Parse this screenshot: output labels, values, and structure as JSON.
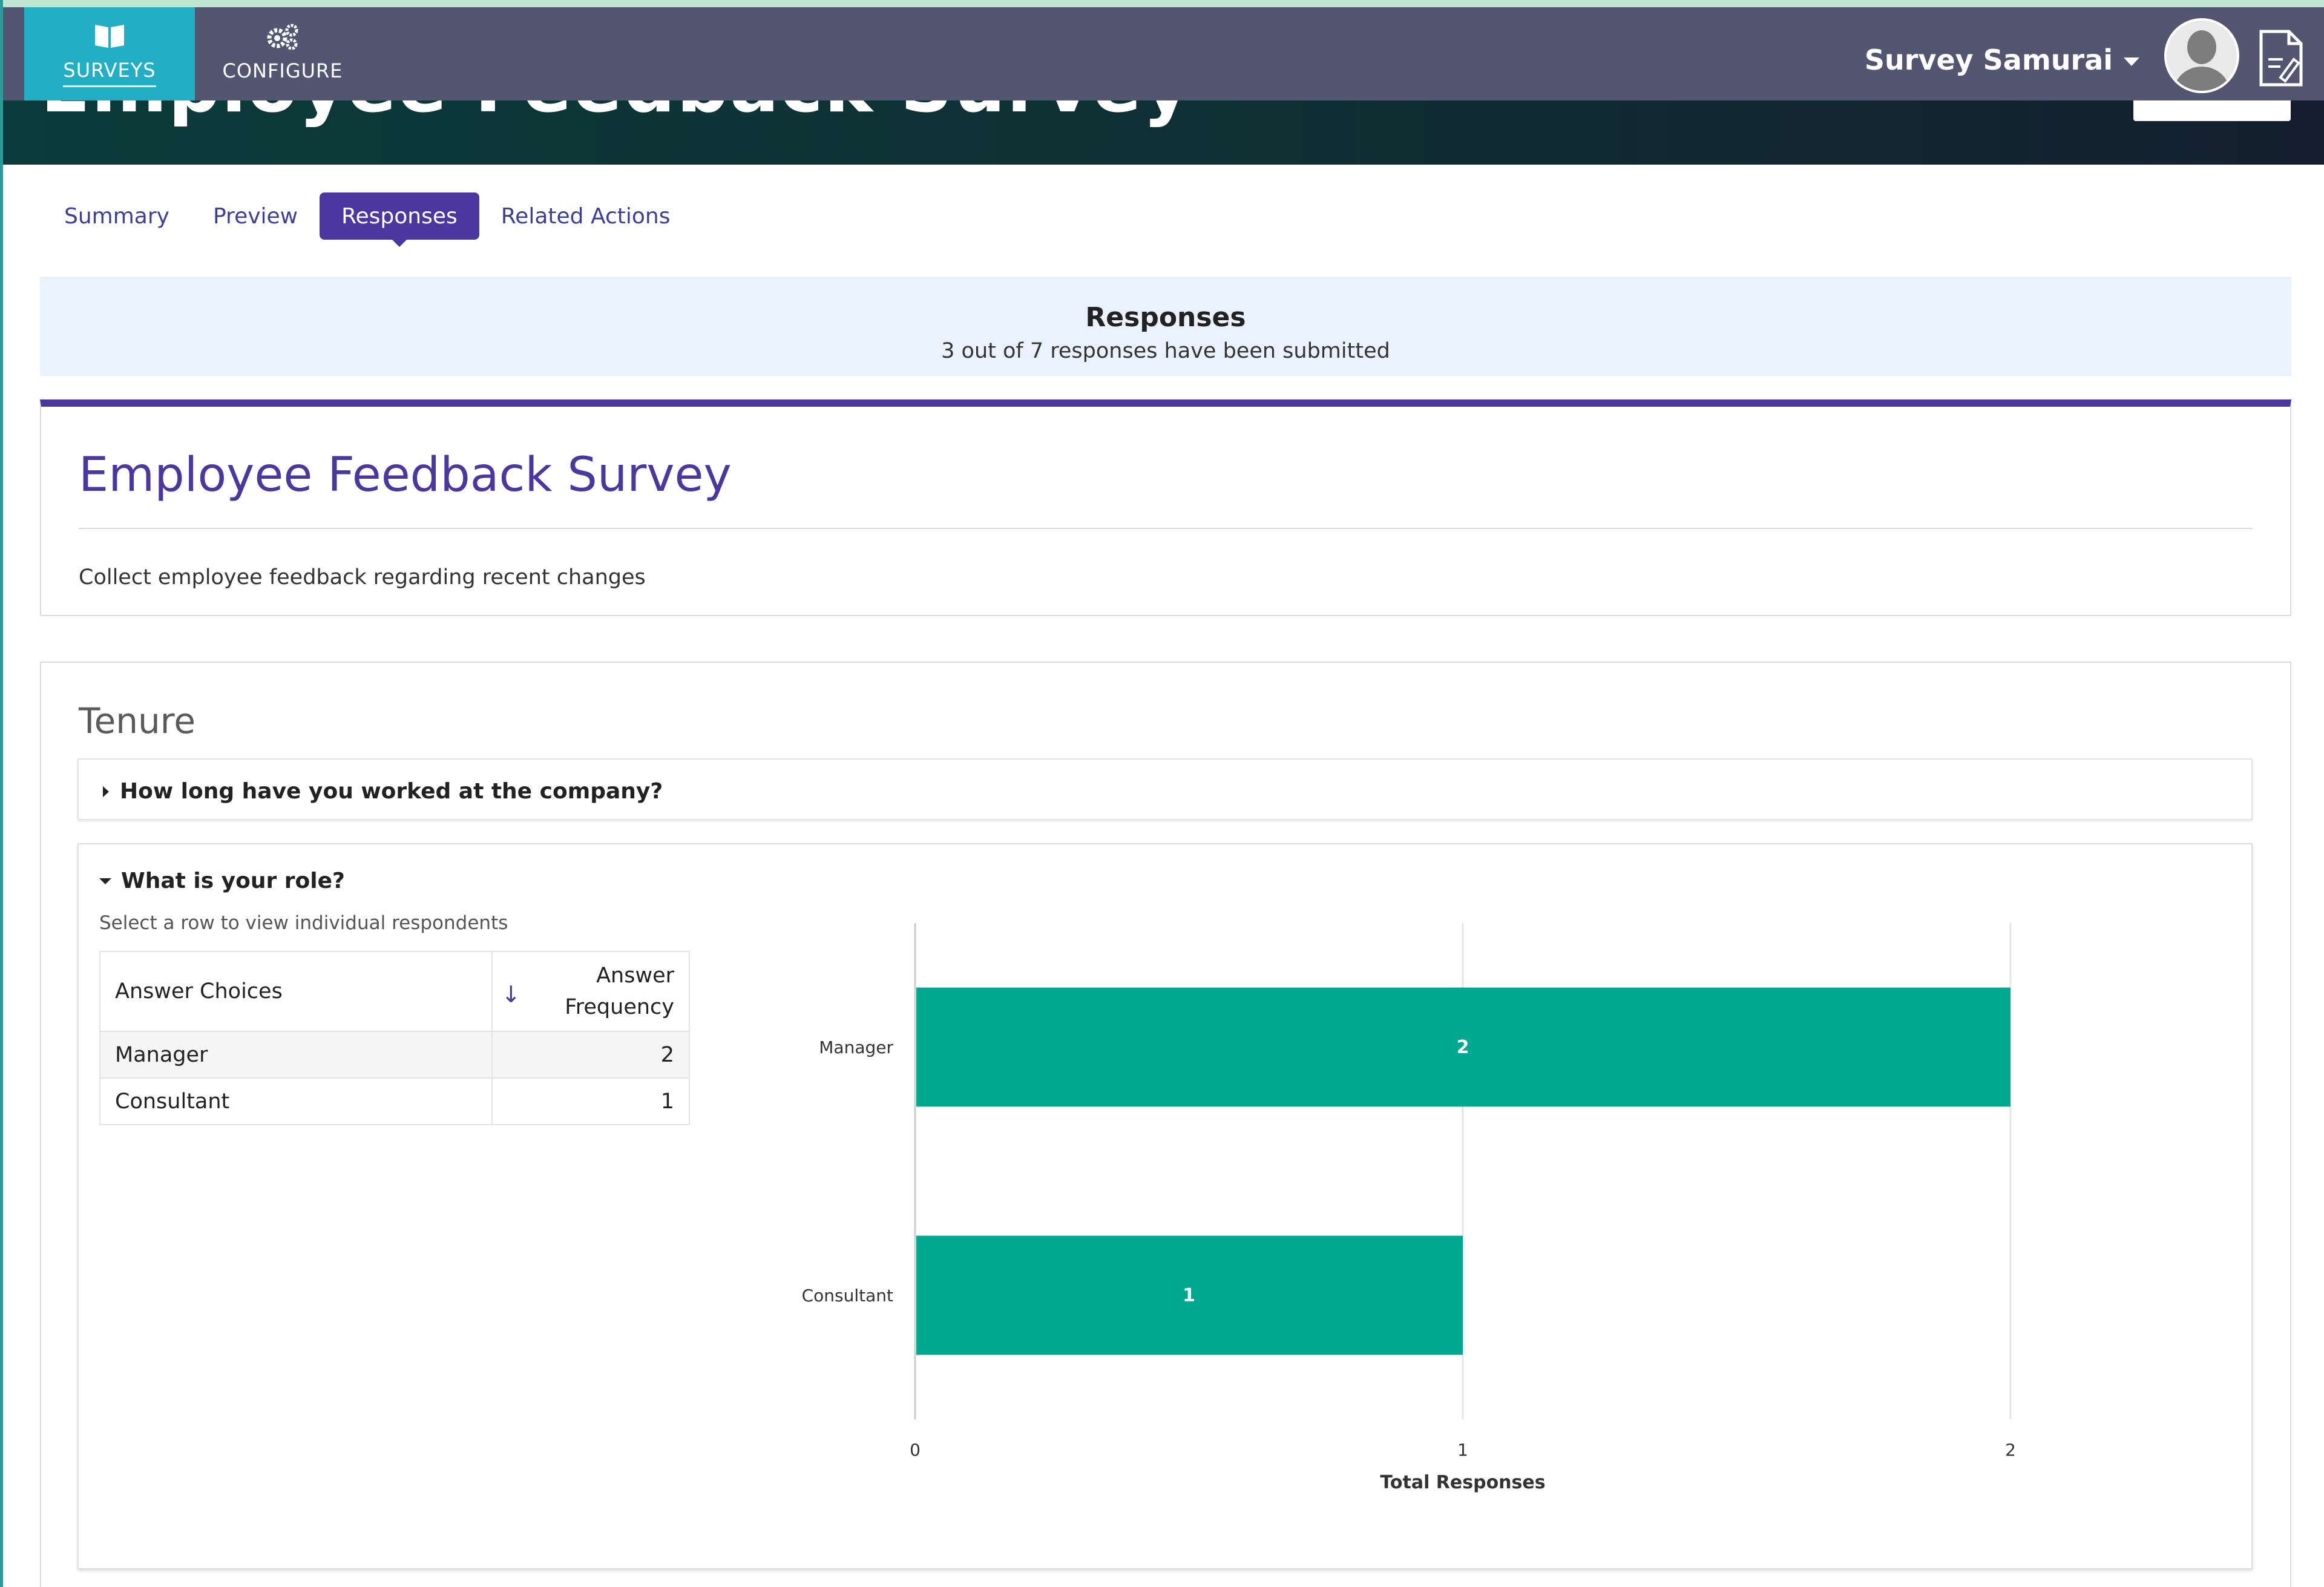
{
  "nav": {
    "tabs": [
      {
        "label": "SURVEYS",
        "icon": "book-icon",
        "active": true
      },
      {
        "label": "CONFIGURE",
        "icon": "gears-icon",
        "active": false
      }
    ],
    "user_name": "Survey Samurai"
  },
  "hero": {
    "title": "Employee Feedback Survey"
  },
  "subtabs": [
    "Summary",
    "Preview",
    "Responses",
    "Related Actions"
  ],
  "responses_banner": {
    "title": "Responses",
    "subtitle": "3 out of 7 responses have been submitted"
  },
  "survey": {
    "title": "Employee Feedback Survey",
    "description": "Collect employee feedback regarding recent changes"
  },
  "section": {
    "title": "Tenure",
    "questions": [
      {
        "label": "How long have you worked at the company?",
        "expanded": false
      },
      {
        "label": "What is your role?",
        "expanded": true
      }
    ]
  },
  "role_question": {
    "hint": "Select a row to view individual respondents",
    "table": {
      "headers": {
        "choice": "Answer Choices",
        "freq_line1": "Answer",
        "freq_line2": "Frequency",
        "sort": "↓"
      },
      "rows": [
        {
          "choice": "Manager",
          "freq": "2"
        },
        {
          "choice": "Consultant",
          "freq": "1"
        }
      ]
    }
  },
  "chart_data": {
    "type": "bar",
    "orientation": "horizontal",
    "categories": [
      "Manager",
      "Consultant"
    ],
    "values": [
      2,
      1
    ],
    "xlabel": "Total Responses",
    "xlim": [
      0,
      2
    ],
    "xticks": [
      "0",
      "1",
      "2"
    ],
    "grid": true,
    "bar_color": "#00a88f"
  },
  "colors": {
    "nav_bg": "#535670",
    "nav_active": "#22aec4",
    "accent_purple": "#4a37a0",
    "banner_bg": "#eaf3fd",
    "bar": "#00a88f"
  }
}
